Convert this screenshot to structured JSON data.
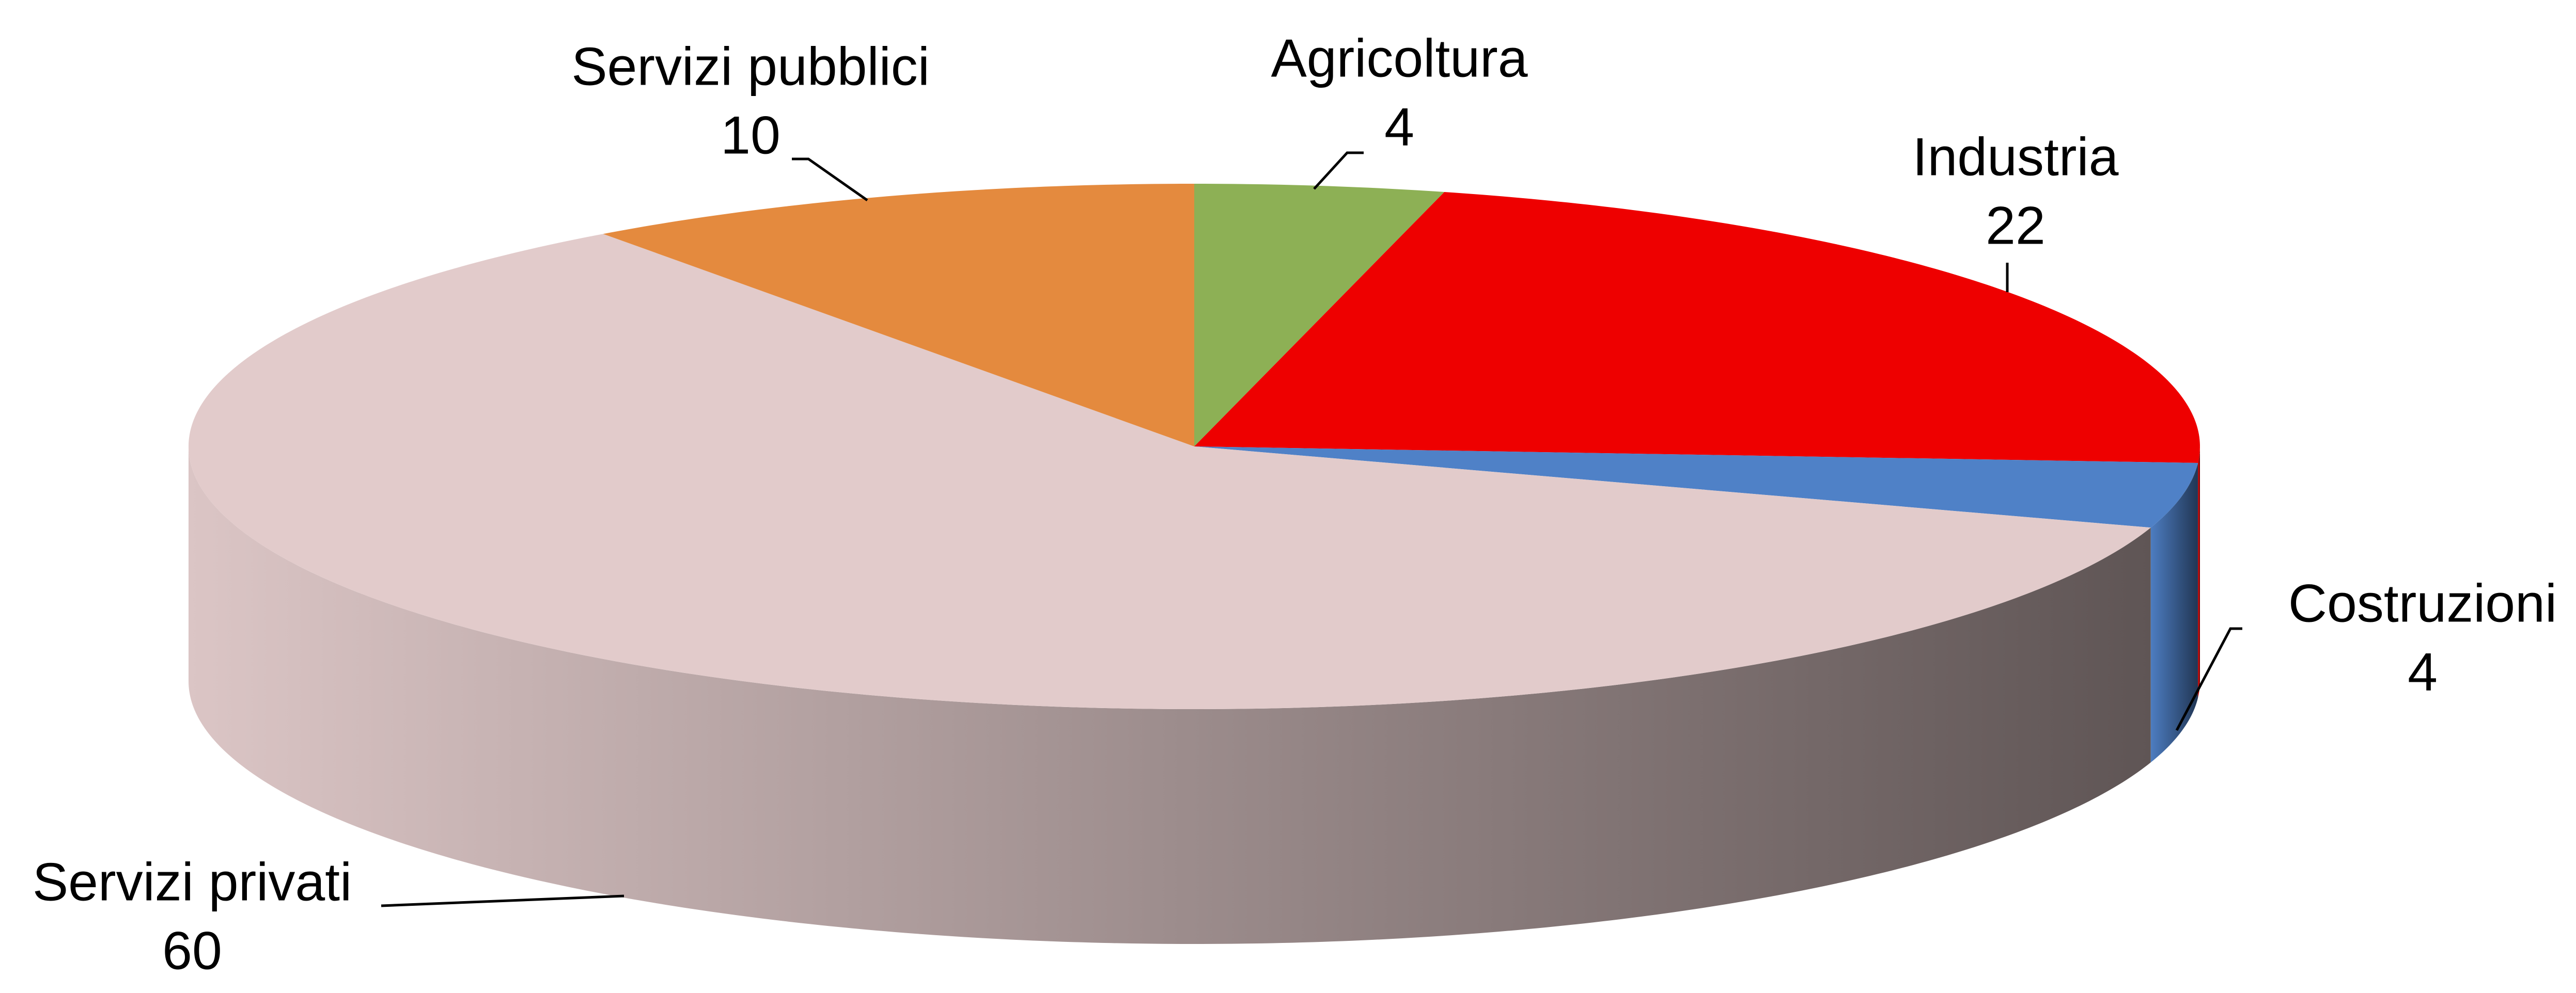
{
  "chart_data": {
    "type": "pie",
    "categories": [
      "Agricoltura",
      "Industria",
      "Costruzioni",
      "Servizi privati",
      "Servizi pubblici"
    ],
    "values": [
      4,
      22,
      4,
      60,
      10
    ],
    "colors": [
      "#8db055",
      "#ee0000",
      "#4f81c7",
      "#e2cbcb",
      "#e48a3e"
    ]
  }
}
